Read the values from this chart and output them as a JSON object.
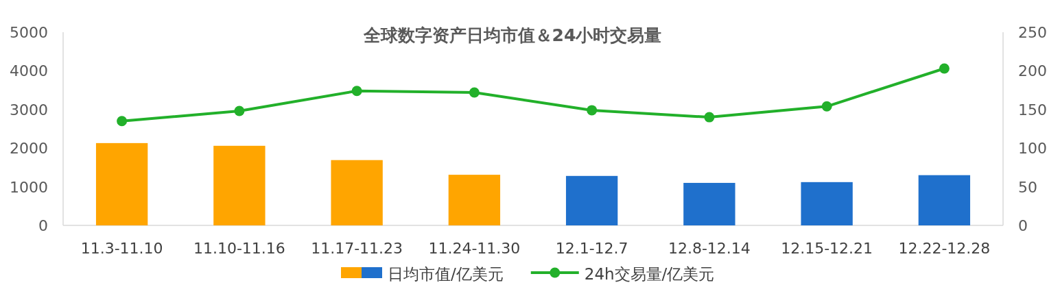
{
  "chart_data": {
    "type": "bar",
    "title": "全球数字资产日均市值＆24小时交易量",
    "categories": [
      "11.3-11.10",
      "11.10-11.16",
      "11.17-11.23",
      "11.24-11.30",
      "12.1-12.7",
      "12.8-12.14",
      "12.15-12.21",
      "12.22-12.28"
    ],
    "series": [
      {
        "name": "日均市值/亿美元",
        "colors": [
          "#ffa500",
          "#ffa500",
          "#ffa500",
          "#ffa500",
          "#1f70cc",
          "#1f70cc",
          "#1f70cc",
          "#1f70cc"
        ],
        "values": [
          2130,
          2060,
          1690,
          1310,
          1280,
          1100,
          1120,
          1300
        ]
      },
      {
        "name": "24h交易量/亿美元",
        "type": "line",
        "axis": "y2",
        "color": "#22b02a",
        "marker": "circle",
        "values": [
          135,
          148,
          174,
          172,
          149,
          140,
          154,
          203
        ]
      }
    ],
    "ylim": [
      0,
      5000
    ],
    "yticks": [
      0,
      1000,
      2000,
      3000,
      4000,
      5000
    ],
    "y2lim": [
      0,
      250
    ],
    "y2ticks": [
      0,
      50,
      100,
      150,
      200,
      250
    ],
    "legend": "bottom",
    "grid": false
  }
}
